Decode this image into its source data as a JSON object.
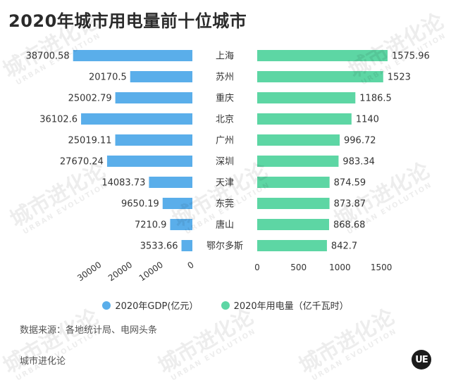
{
  "title": "2020年城市用电量前十位城市",
  "chart_data": {
    "type": "bar",
    "categories": [
      "上海",
      "苏州",
      "重庆",
      "北京",
      "广州",
      "深圳",
      "天津",
      "东莞",
      "唐山",
      "鄂尔多斯"
    ],
    "series": [
      {
        "name": "2020年GDP(亿元）",
        "values": [
          38700.58,
          20170.5,
          25002.79,
          36102.6,
          25019.11,
          27670.24,
          14083.73,
          9650.19,
          7210.9,
          3533.66
        ],
        "labels": [
          "38700.58",
          "20170.5",
          "25002.79",
          "36102.6",
          "25019.11",
          "27670.24",
          "14083.73",
          "9650.19",
          "7210.9",
          "3533.66"
        ],
        "color": "#5aaeea",
        "axis_ticks": [
          "30000",
          "20000",
          "10000",
          "0"
        ],
        "axis_tick_values": [
          30000,
          20000,
          10000,
          0
        ],
        "xlim": [
          0,
          40000
        ],
        "direction": "left"
      },
      {
        "name": "2020年用电量（亿千瓦时）",
        "values": [
          1575.96,
          1523,
          1186.5,
          1140,
          996.72,
          983.34,
          874.59,
          873.87,
          868.68,
          842.7
        ],
        "labels": [
          "1575.96",
          "1523",
          "1186.5",
          "1140",
          "996.72",
          "983.34",
          "874.59",
          "873.87",
          "868.68",
          "842.7"
        ],
        "color": "#5dd6a4",
        "axis_ticks": [
          "0",
          "500",
          "1000",
          "1500"
        ],
        "axis_tick_values": [
          0,
          500,
          1000,
          1500
        ],
        "xlim": [
          0,
          1610
        ],
        "direction": "right"
      }
    ],
    "legend_position": "bottom",
    "grid": false
  },
  "legend": {
    "gdp_label": "2020年GDP(亿元）",
    "power_label": "2020年用电量（亿千瓦时）",
    "gdp_color": "#5aaeea",
    "power_color": "#5dd6a4"
  },
  "source": "数据来源：各地统计局、电网头条",
  "brand": "城市进化论",
  "logo_text": "UE",
  "watermark": {
    "cn": "城市进化论",
    "en": "URBAN EVOLUTION"
  }
}
